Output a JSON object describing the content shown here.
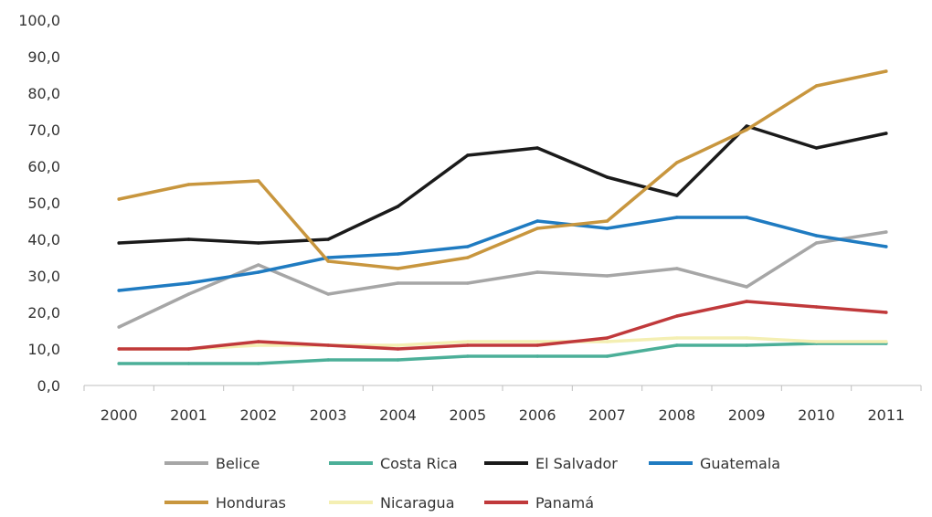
{
  "chart_data": {
    "type": "line",
    "categories": [
      "2000",
      "2001",
      "2002",
      "2003",
      "2004",
      "2005",
      "2006",
      "2007",
      "2008",
      "2009",
      "2010",
      "2011"
    ],
    "ylim": [
      0,
      100
    ],
    "yticks": [
      "0,0",
      "10,0",
      "20,0",
      "30,0",
      "40,0",
      "50,0",
      "60,0",
      "70,0",
      "80,0",
      "90,0",
      "100,0"
    ],
    "grid": false,
    "legend_position": "bottom",
    "series": [
      {
        "name": "Belice",
        "color": "#A6A6A6",
        "values": [
          16,
          25,
          33,
          25,
          28,
          28,
          31,
          30,
          32,
          27,
          39,
          42
        ]
      },
      {
        "name": "Costa Rica",
        "color": "#4BAF98",
        "values": [
          6,
          6,
          6,
          7,
          7,
          8,
          8,
          8,
          11,
          11,
          11.5,
          11.5
        ]
      },
      {
        "name": "El Salvador",
        "color": "#1A1A1A",
        "values": [
          39,
          40,
          39,
          40,
          49,
          63,
          65,
          57,
          52,
          71,
          65,
          69
        ]
      },
      {
        "name": "Guatemala",
        "color": "#1F7BC1",
        "values": [
          26,
          28,
          31,
          35,
          36,
          38,
          45,
          43,
          46,
          46,
          41,
          38
        ]
      },
      {
        "name": "Honduras",
        "color": "#C8963E",
        "values": [
          51,
          55,
          56,
          34,
          32,
          35,
          43,
          45,
          61,
          70,
          82,
          86
        ]
      },
      {
        "name": "Nicaragua",
        "color": "#F4EFB3",
        "values": [
          10,
          10,
          11,
          11,
          11,
          12,
          12,
          12,
          13,
          13,
          12,
          12
        ]
      },
      {
        "name": "Panamá",
        "color": "#C0393B",
        "values": [
          10,
          10,
          12,
          11,
          10,
          11,
          11,
          13,
          19,
          23,
          21.5,
          20
        ]
      }
    ]
  }
}
